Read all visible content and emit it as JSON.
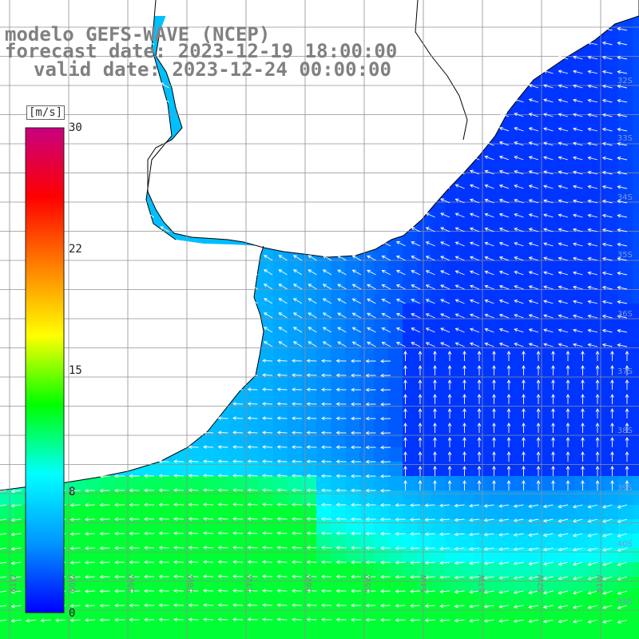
{
  "title": {
    "line1": "modelo GEFS-WAVE (NCEP)",
    "line2": "forecast date: 2023-12-19 18:00:00",
    "line3": "valid date: 2023-12-24 00:00:00"
  },
  "colorbar": {
    "unit": "[m/s]",
    "ticks": [
      "30",
      "22",
      "15",
      "8",
      "0"
    ],
    "stops": [
      "#0000ff",
      "#0096ff",
      "#00ffff",
      "#00ff00",
      "#ffff00",
      "#ff8000",
      "#ff0000",
      "#c80080"
    ]
  },
  "map": {
    "land_color": "#ffffff",
    "grid_color": "#909090",
    "coast_color": "#000000",
    "lon_labels": [
      "61W",
      "60W",
      "59W",
      "58W",
      "57W",
      "56W",
      "55W",
      "54W",
      "53W",
      "52W",
      "51W"
    ],
    "lat_labels": [
      "32S",
      "33S",
      "34S",
      "35S",
      "36S",
      "37S",
      "38S",
      "39S",
      "40S",
      "41S"
    ]
  },
  "field": {
    "variable": "wind speed",
    "units": "m/s",
    "range": [
      0,
      30
    ],
    "arrow_color": "#ffffff"
  }
}
